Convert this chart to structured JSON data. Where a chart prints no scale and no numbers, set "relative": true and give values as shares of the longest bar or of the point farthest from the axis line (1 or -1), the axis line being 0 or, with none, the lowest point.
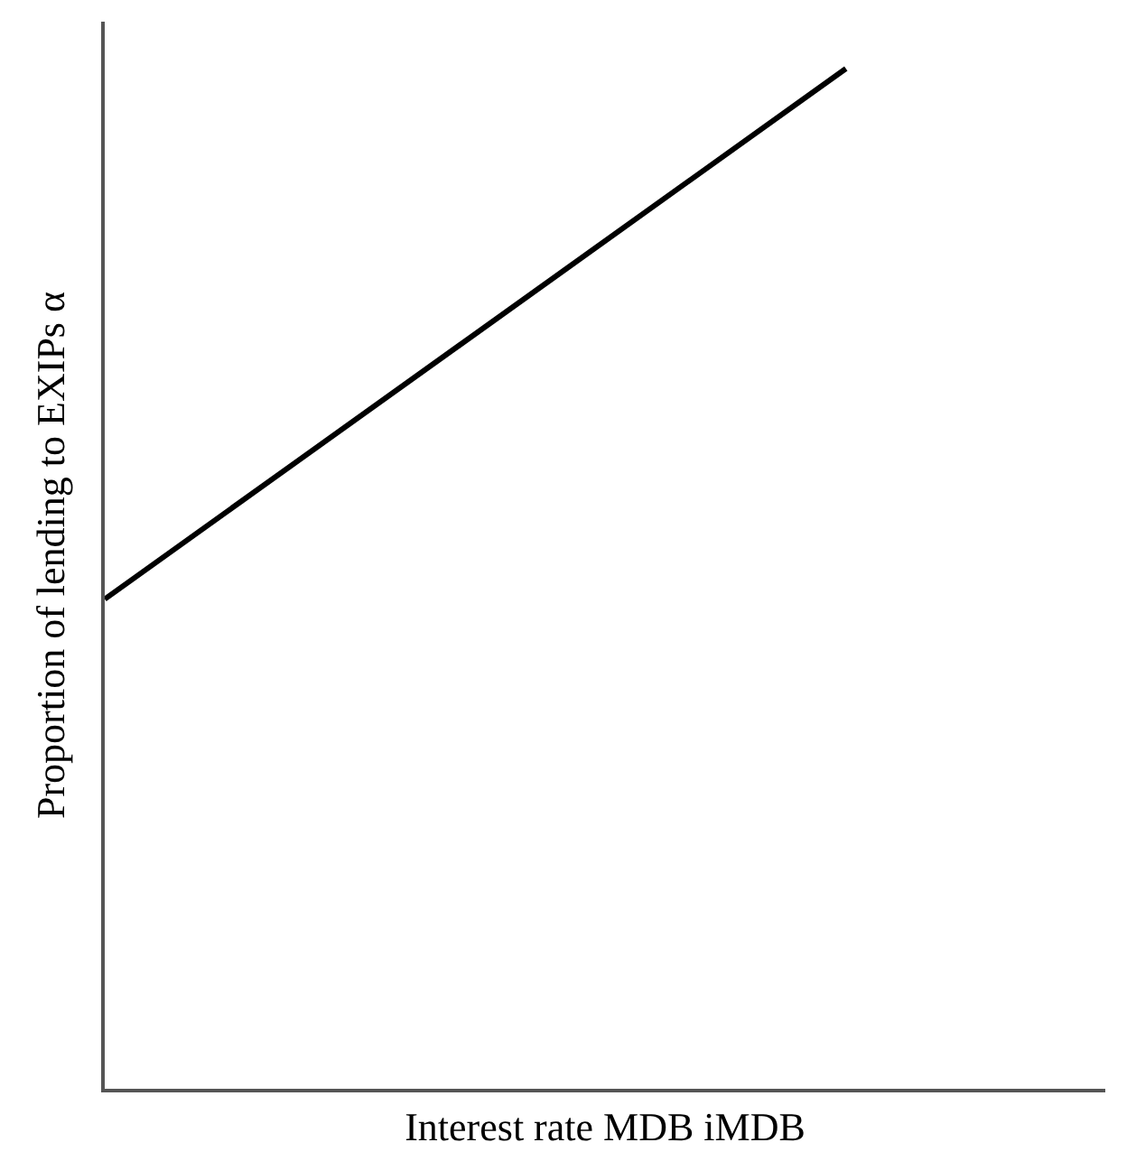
{
  "chart_data": {
    "type": "line",
    "relative": true,
    "xlabel": "Interest rate MDB iMDB",
    "ylabel": "Proportion of lending to EXIPs α",
    "categories": [
      null,
      null
    ],
    "series": [
      {
        "color": "#000000",
        "values": [
          0.48,
          1
        ]
      }
    ],
    "marker": "none",
    "line_style": "solid"
  }
}
